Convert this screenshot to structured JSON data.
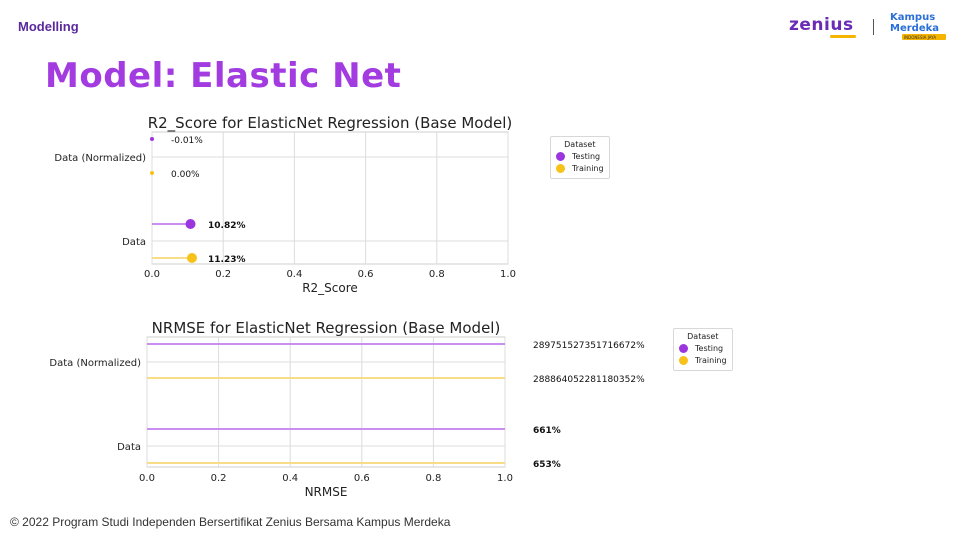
{
  "header": {
    "section_label": "Modelling",
    "title": "Model: Elastic Net",
    "logo_zenius": "zenius",
    "logo_kampus_line1": "Kampus",
    "logo_kampus_line2": "Merdeka",
    "logo_kampus_line3": "INDONESIA JAYA"
  },
  "footer": {
    "copyright": "© 2022 Program Studi Independen Bersertifikat Zenius Bersama Kampus Merdeka"
  },
  "colors": {
    "testing": "#9b35dd",
    "training": "#f7c21a",
    "testing_line": "#c98ef0",
    "training_line": "#f9dc87",
    "title_purple": "#a23be0"
  },
  "chart_data": [
    {
      "type": "dot-plot",
      "title": "R2_Score for ElasticNet Regression (Base Model)",
      "xlabel": "R2_Score",
      "ylabel": "",
      "xlim": [
        0,
        1
      ],
      "xticks": [
        "0.0",
        "0.2",
        "0.4",
        "0.6",
        "0.8",
        "1.0"
      ],
      "categories": [
        "Data (Normalized)",
        "Data"
      ],
      "grid": true,
      "legend": {
        "title": "Dataset",
        "placement": "outside-right",
        "entries": [
          "Testing",
          "Training"
        ]
      },
      "series": [
        {
          "name": "Testing",
          "values": [
            -0.0001,
            0.1082
          ],
          "labels": [
            "-0.01%",
            "10.82%"
          ]
        },
        {
          "name": "Training",
          "values": [
            0.0,
            0.1123
          ],
          "labels": [
            "0.00%",
            "11.23%"
          ]
        }
      ]
    },
    {
      "type": "dot-plot",
      "title": "NRMSE for ElasticNet Regression (Base Model)",
      "xlabel": "NRMSE",
      "ylabel": "",
      "xlim": [
        0,
        1
      ],
      "xticks": [
        "0.0",
        "0.2",
        "0.4",
        "0.6",
        "0.8",
        "1.0"
      ],
      "categories": [
        "Data (Normalized)",
        "Data"
      ],
      "grid": true,
      "legend": {
        "title": "Dataset",
        "placement": "outside-right",
        "entries": [
          "Testing",
          "Training"
        ]
      },
      "series": [
        {
          "name": "Testing",
          "values": [
            2897515273517166.5,
            6.61
          ],
          "labels": [
            "289751527351716672%",
            "661%"
          ]
        },
        {
          "name": "Training",
          "values": [
            2888640522811803.5,
            6.53
          ],
          "labels": [
            "288864052281180352%",
            "653%"
          ]
        }
      ]
    }
  ]
}
